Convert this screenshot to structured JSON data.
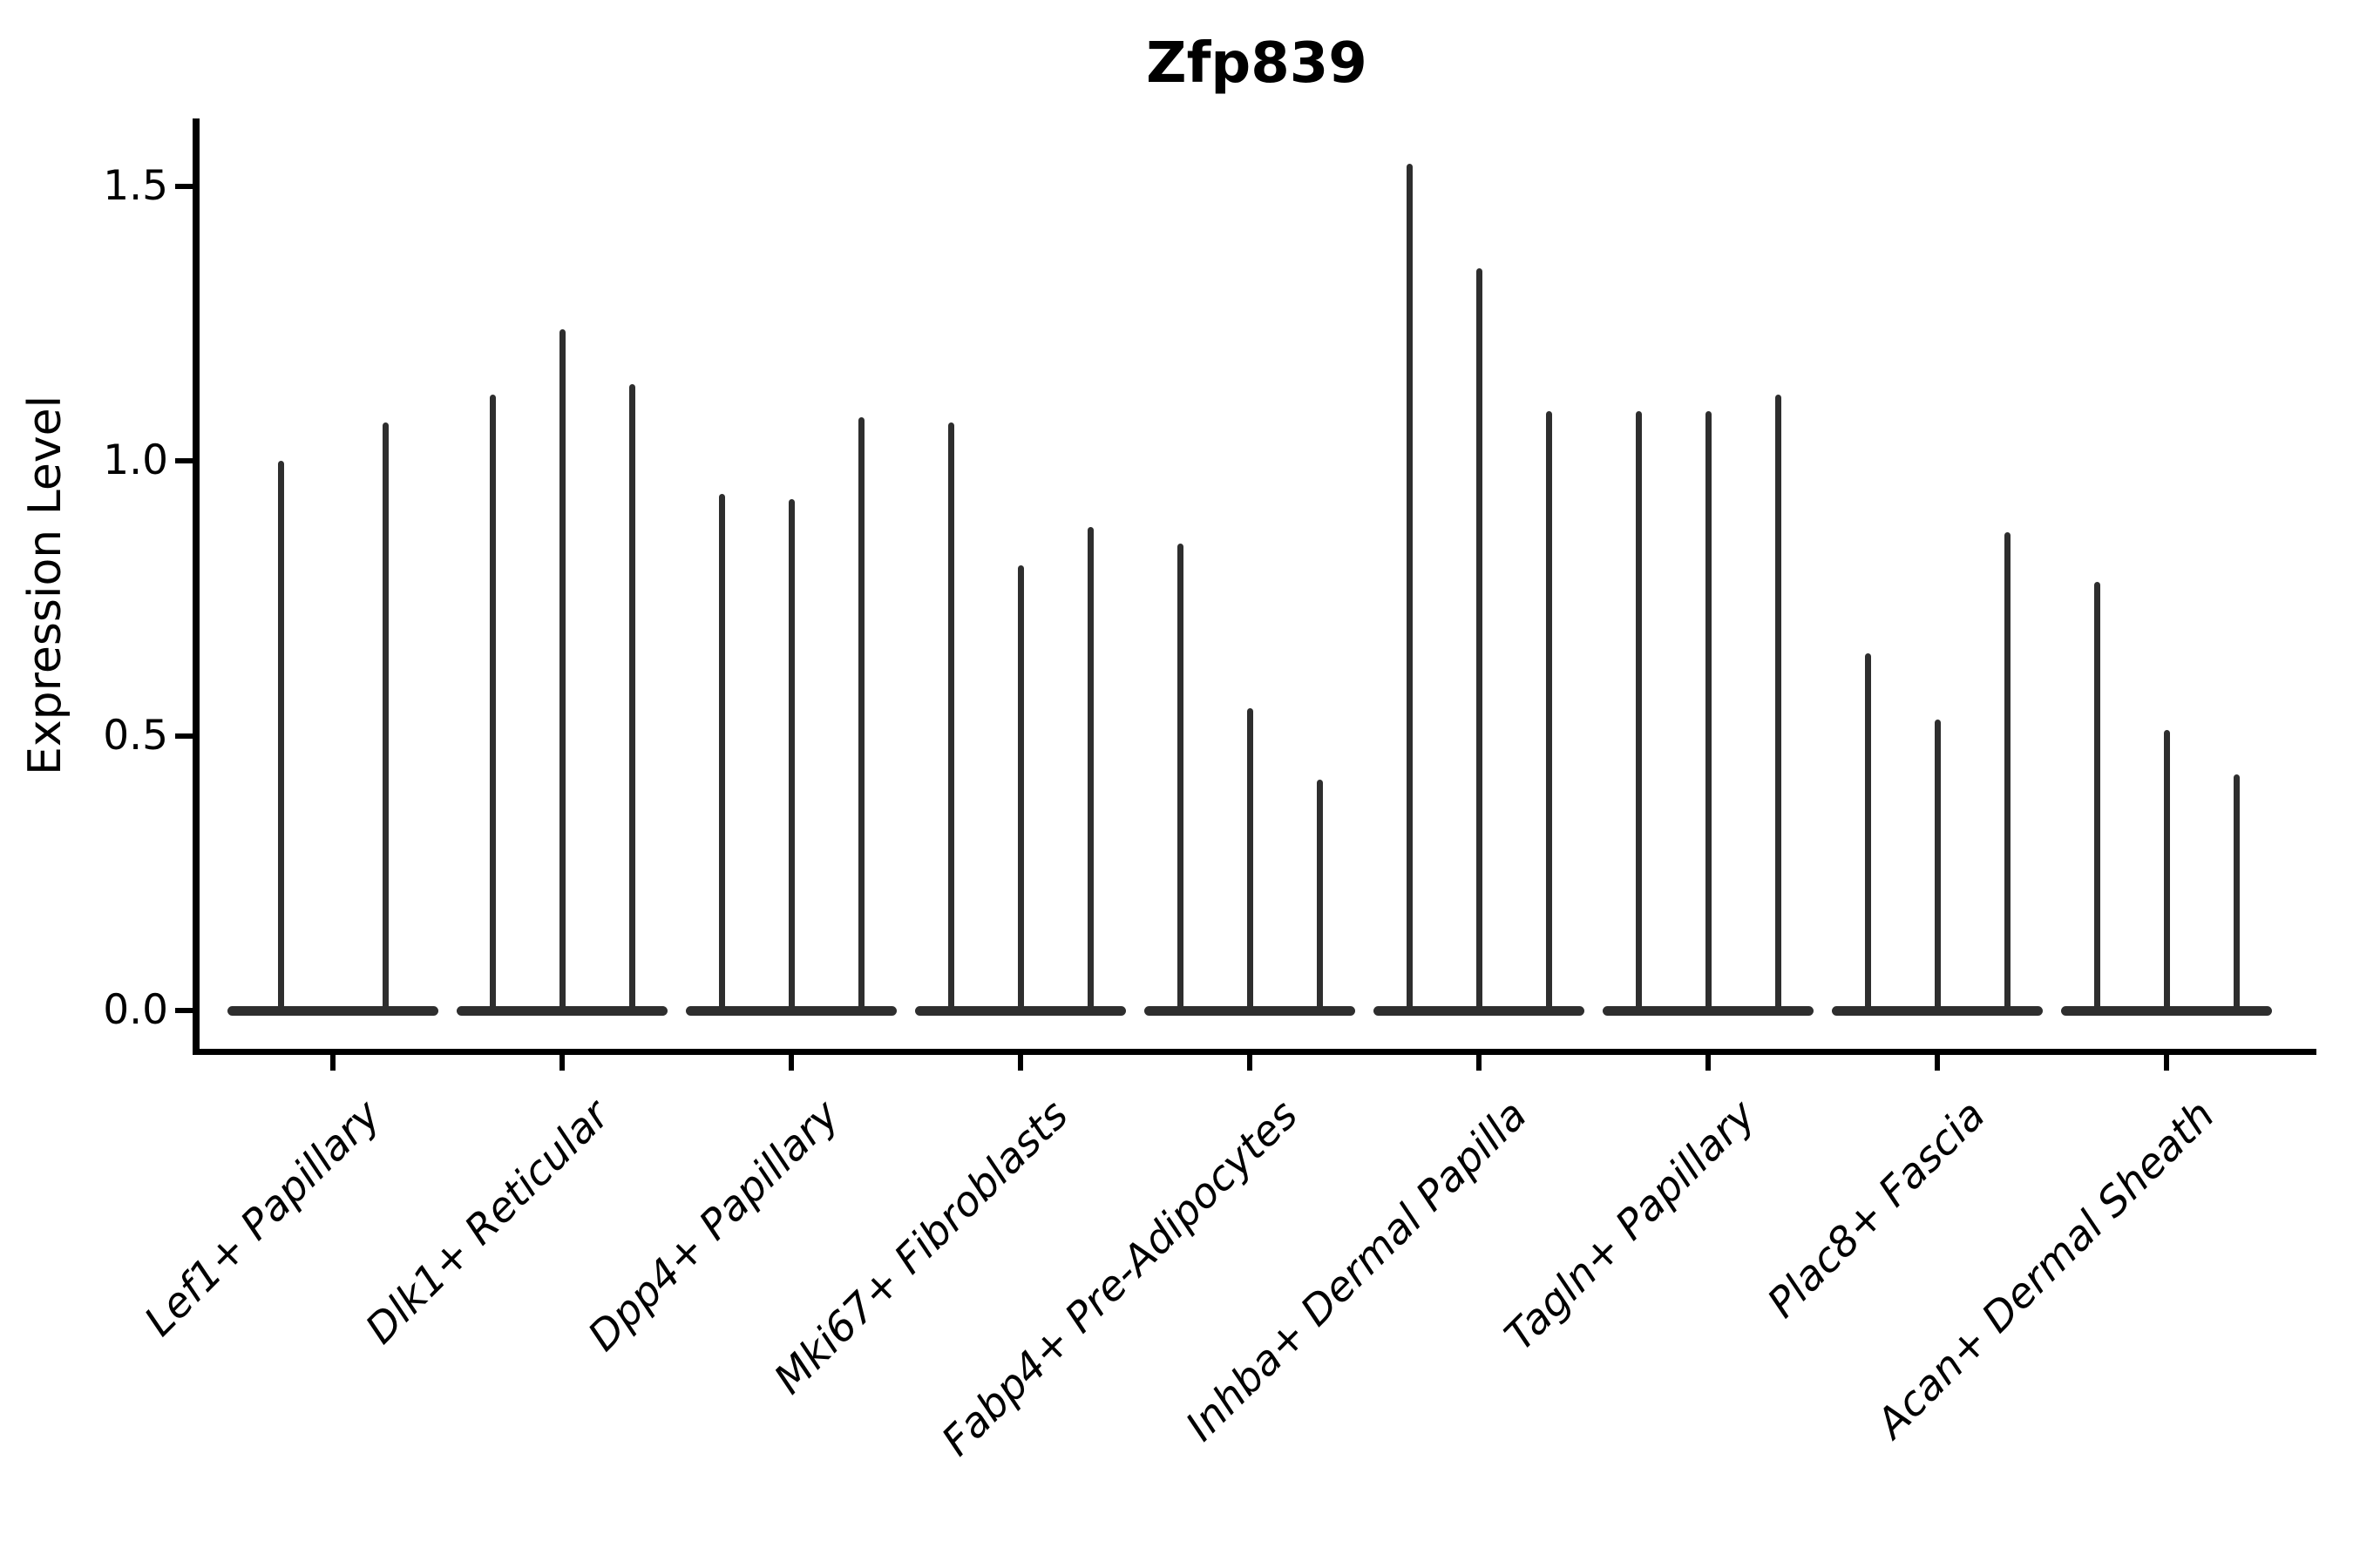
{
  "title": "Zfp839",
  "y_axis": {
    "label": "Expression Level",
    "tick_labels": [
      "0.0",
      "0.5",
      "1.0",
      "1.5"
    ],
    "tick_values": [
      0.0,
      0.5,
      1.0,
      1.5
    ]
  },
  "x_axis": {
    "categories": [
      "Lef1+ Papillary",
      "Dlk1+ Reticular",
      "Dpp4+ Papillary",
      "Mki67+ Fibroblasts",
      "Fabp4+ Pre-Adipocytes",
      "Inhba+ Dermal Papilla",
      "Tagln+ Papillary",
      "Plac8+ Fascia",
      "Acan+ Dermal Sheath"
    ]
  },
  "colors": {
    "ink": "#000000",
    "violin": "#2e2e2e",
    "background": "#ffffff"
  },
  "chart_data": {
    "type": "violin",
    "title": "Zfp839",
    "xlabel": "",
    "ylabel": "Expression Level",
    "ylim": [
      -0.07,
      1.6
    ],
    "yticks": [
      0.0,
      0.5,
      1.0,
      1.5
    ],
    "grid": false,
    "legend": "none",
    "orientation": "vertical",
    "categories": [
      "Lef1+ Papillary",
      "Dlk1+ Reticular",
      "Dpp4+ Papillary",
      "Mki67+ Fibroblasts",
      "Fabp4+ Pre-Adipocytes",
      "Inhba+ Dermal Papilla",
      "Tagln+ Papillary",
      "Plac8+ Fascia",
      "Acan+ Dermal Sheath"
    ],
    "groups": [
      {
        "category": "Lef1+ Papillary",
        "violin_maxima": [
          1.0,
          1.07
        ]
      },
      {
        "category": "Dlk1+ Reticular",
        "violin_maxima": [
          1.12,
          1.24,
          1.14
        ]
      },
      {
        "category": "Dpp4+ Papillary",
        "violin_maxima": [
          0.94,
          0.93,
          1.08
        ]
      },
      {
        "category": "Mki67+ Fibroblasts",
        "violin_maxima": [
          1.07,
          0.81,
          0.88
        ]
      },
      {
        "category": "Fabp4+ Pre-Adipocytes",
        "violin_maxima": [
          0.85,
          0.55,
          0.42
        ]
      },
      {
        "category": "Inhba+ Dermal Papilla",
        "violin_maxima": [
          1.54,
          1.35,
          1.09
        ]
      },
      {
        "category": "Tagln+ Papillary",
        "violin_maxima": [
          1.09,
          1.09,
          1.12
        ]
      },
      {
        "category": "Plac8+ Fascia",
        "violin_maxima": [
          0.65,
          0.53,
          0.87
        ]
      },
      {
        "category": "Acan+ Dermal Sheath",
        "violin_maxima": [
          0.78,
          0.51,
          0.43
        ]
      }
    ],
    "density_concentration": 0.0
  }
}
